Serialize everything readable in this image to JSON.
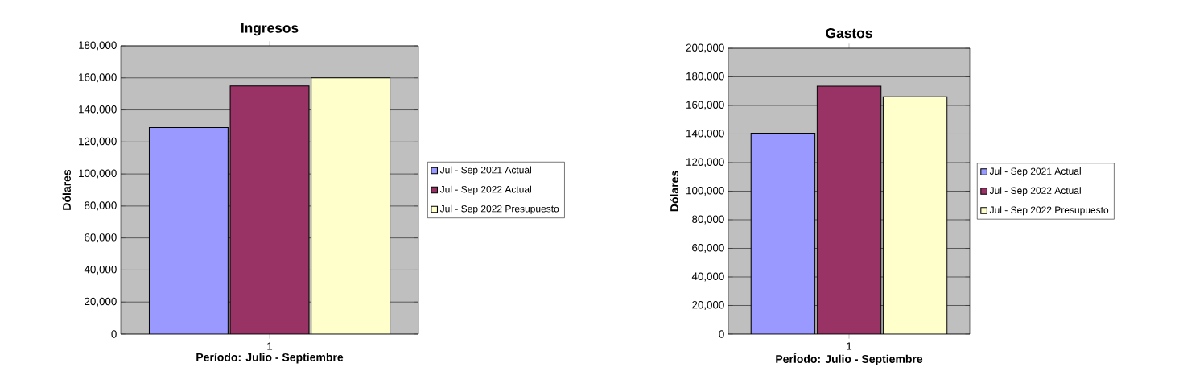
{
  "chart_data": [
    {
      "type": "bar",
      "title": "Ingresos",
      "xlabel": "Período: Julio - Septiembre",
      "ylabel": "Dólares",
      "categories": [
        "1"
      ],
      "series": [
        {
          "name": "Jul - Sep 2021 Actual",
          "color": "#9999ff",
          "values": [
            129000
          ]
        },
        {
          "name": "Jul - Sep 2022 Actual",
          "color": "#993366",
          "values": [
            155000
          ]
        },
        {
          "name": "Jul - Sep 2022 Presupuesto",
          "color": "#ffffcc",
          "values": [
            160000
          ]
        }
      ],
      "ylim": [
        0,
        180000
      ],
      "yticks": [
        0,
        {
          "value": 20000,
          "label": "20,000"
        },
        {
          "value": 40000,
          "label": "40,000"
        },
        {
          "value": 60000,
          "label": "60,000"
        },
        {
          "value": 80000,
          "label": "80,000"
        },
        {
          "value": 100000,
          "label": "100,000"
        },
        {
          "value": 120000,
          "label": "120,000"
        },
        {
          "value": 140000,
          "label": "140,000"
        },
        {
          "value": 160000,
          "label": "160,000"
        },
        {
          "value": 180000,
          "label": "180,000"
        }
      ],
      "grid": "y",
      "legend": "right"
    },
    {
      "type": "bar",
      "title": "Gastos",
      "xlabel": "PerÍodo: Julio - Septiembre",
      "ylabel": "Dólares",
      "categories": [
        "1"
      ],
      "series": [
        {
          "name": "Jul - Sep 2021 Actual",
          "color": "#9999ff",
          "values": [
            140500
          ]
        },
        {
          "name": "Jul - Sep 2022 Actual",
          "color": "#993366",
          "values": [
            173500
          ]
        },
        {
          "name": "Jul - Sep 2022 Presupuesto",
          "color": "#ffffcc",
          "values": [
            166000
          ]
        }
      ],
      "ylim": [
        0,
        200000
      ],
      "yticks": [
        0,
        {
          "value": 20000,
          "label": "20,000"
        },
        {
          "value": 40000,
          "label": "40,000"
        },
        {
          "value": 60000,
          "label": "60,000"
        },
        {
          "value": 80000,
          "label": "80,000"
        },
        {
          "value": 100000,
          "label": "100,000"
        },
        {
          "value": 120000,
          "label": "120,000"
        },
        {
          "value": 140000,
          "label": "140,000"
        },
        {
          "value": 160000,
          "label": "160,000"
        },
        {
          "value": 180000,
          "label": "180,000"
        },
        {
          "value": 200000,
          "label": "200,000"
        }
      ],
      "grid": "y",
      "legend": "right"
    }
  ]
}
